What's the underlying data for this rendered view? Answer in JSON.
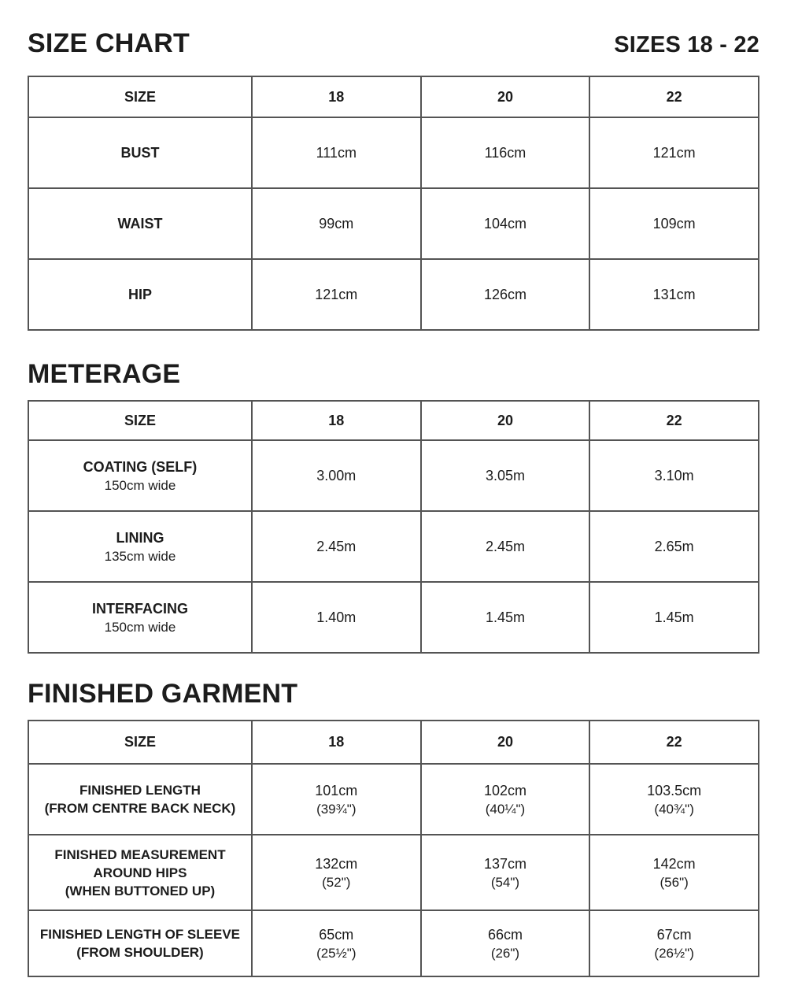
{
  "size_chart": {
    "heading": "SIZE CHART",
    "range": "SIZES 18 - 22",
    "columns": [
      "SIZE",
      "18",
      "20",
      "22"
    ],
    "rows": [
      {
        "label": "BUST",
        "values": [
          "111cm",
          "116cm",
          "121cm"
        ]
      },
      {
        "label": "WAIST",
        "values": [
          "99cm",
          "104cm",
          "109cm"
        ]
      },
      {
        "label": "HIP",
        "values": [
          "121cm",
          "126cm",
          "131cm"
        ]
      }
    ]
  },
  "meterage": {
    "heading": "METERAGE",
    "columns": [
      "SIZE",
      "18",
      "20",
      "22"
    ],
    "rows": [
      {
        "label": "COATING (SELF)",
        "sublabel": "150cm wide",
        "values": [
          "3.00m",
          "3.05m",
          "3.10m"
        ]
      },
      {
        "label": "LINING",
        "sublabel": "135cm wide",
        "values": [
          "2.45m",
          "2.45m",
          "2.65m"
        ]
      },
      {
        "label": "INTERFACING",
        "sublabel": "150cm wide",
        "values": [
          "1.40m",
          "1.45m",
          "1.45m"
        ]
      }
    ]
  },
  "finished_garment": {
    "heading": "FINISHED GARMENT",
    "columns": [
      "SIZE",
      "18",
      "20",
      "22"
    ],
    "rows": [
      {
        "label_lines": [
          "FINISHED LENGTH",
          "(FROM CENTRE BACK NECK)"
        ],
        "values": [
          {
            "cm": "101cm",
            "in": "(39¾\")"
          },
          {
            "cm": "102cm",
            "in": "(40¼\")"
          },
          {
            "cm": "103.5cm",
            "in": "(40¾\")"
          }
        ]
      },
      {
        "label_lines": [
          "FINISHED MEASUREMENT",
          "AROUND HIPS",
          "(WHEN BUTTONED UP)"
        ],
        "values": [
          {
            "cm": "132cm",
            "in": "(52\")"
          },
          {
            "cm": "137cm",
            "in": "(54\")"
          },
          {
            "cm": "142cm",
            "in": "(56\")"
          }
        ]
      },
      {
        "label_lines": [
          "FINISHED LENGTH OF SLEEVE",
          "(FROM SHOULDER)"
        ],
        "values": [
          {
            "cm": "65cm",
            "in": "(25½\")"
          },
          {
            "cm": "66cm",
            "in": "(26\")"
          },
          {
            "cm": "67cm",
            "in": "(26½\")"
          }
        ]
      }
    ]
  },
  "colors": {
    "text": "#1c1c1c",
    "border": "#545454",
    "background": "#ffffff"
  }
}
